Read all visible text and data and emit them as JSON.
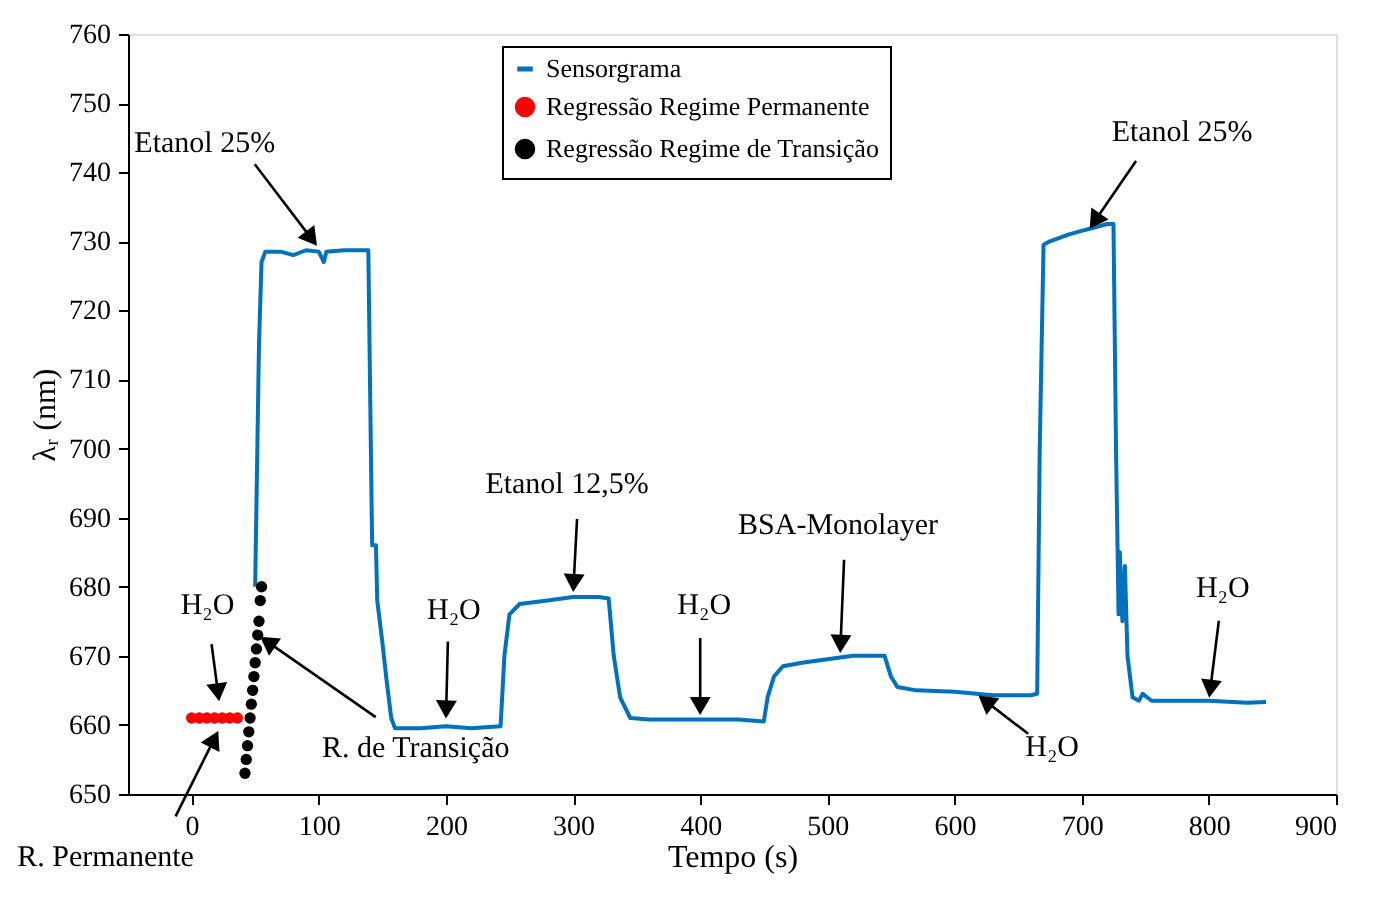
{
  "chart_data": {
    "type": "line",
    "xlabel": "Tempo (s)",
    "ylabel": "λᵣ (nm)",
    "xlim": [
      -50,
      900
    ],
    "xticks": [
      0,
      100,
      200,
      300,
      400,
      500,
      600,
      700,
      800,
      900
    ],
    "ylim": [
      650,
      760
    ],
    "yticks": [
      650,
      660,
      670,
      680,
      690,
      700,
      710,
      720,
      730,
      740,
      750,
      760
    ],
    "grid": false,
    "legend": "top",
    "series": [
      {
        "name": "Sensorgrama",
        "color": "#0072bd",
        "marker": "none",
        "x": [
          50,
          53,
          55,
          58,
          70,
          80,
          90,
          100,
          104,
          106,
          120,
          139,
          141,
          142,
          145,
          146,
          150,
          153,
          157,
          160,
          180,
          200,
          220,
          243,
          246,
          250,
          258,
          280,
          300,
          320,
          328,
          332,
          337,
          345,
          360,
          400,
          430,
          450,
          453,
          458,
          465,
          480,
          500,
          520,
          545,
          550,
          555,
          570,
          600,
          630,
          660,
          665,
          667,
          670,
          675,
          690,
          700,
          710,
          720,
          725,
          727,
          729,
          730,
          732,
          734,
          736,
          740,
          745,
          748,
          755,
          780,
          800,
          830,
          845
        ],
        "values": [
          680,
          715,
          727,
          728.5,
          728.5,
          728,
          728.7,
          728.5,
          727,
          728.5,
          728.7,
          728.7,
          700,
          686,
          686,
          678,
          672,
          667,
          661,
          659.5,
          659.5,
          659.8,
          659.5,
          659.8,
          670,
          676,
          677.5,
          678,
          678.5,
          678.5,
          678.3,
          670,
          664,
          661,
          660.8,
          660.8,
          660.8,
          660.5,
          664,
          667,
          668.5,
          669,
          669.5,
          670,
          670,
          667,
          665.5,
          665,
          664.8,
          664.3,
          664.3,
          664.5,
          700,
          729.5,
          730,
          731,
          731.5,
          732,
          732.5,
          732.5,
          700,
          676,
          685,
          675,
          683,
          670,
          664,
          663.5,
          664.5,
          663.5,
          663.5,
          663.5,
          663.2,
          663.3
        ]
      },
      {
        "name": "Regressão Regime Permanente",
        "type": "scatter",
        "color": "#ff0000",
        "marker": "circle",
        "x": [
          0,
          6,
          12,
          18,
          24,
          30,
          36
        ],
        "values": [
          661,
          661,
          661,
          661,
          661,
          661,
          661
        ]
      },
      {
        "name": "Regressão Regime de Transição",
        "type": "scatter",
        "color": "#000000",
        "marker": "circle",
        "x": [
          42,
          43,
          44,
          45,
          46,
          47,
          48,
          49,
          50,
          51,
          52,
          53,
          54,
          55
        ],
        "values": [
          653,
          655,
          657,
          659,
          661,
          663,
          665,
          667,
          669,
          671,
          673,
          675,
          678,
          680
        ]
      }
    ],
    "annotations": [
      {
        "text": "Etanol 25%",
        "x": 100,
        "y": 729
      },
      {
        "text": "H₂O",
        "x": 22,
        "y": 663
      },
      {
        "text": "R. Permanente",
        "x": 22,
        "y": 659.5
      },
      {
        "text": "R. de Transição",
        "x": 52,
        "y": 673
      },
      {
        "text": "H₂O",
        "x": 200,
        "y": 660.5
      },
      {
        "text": "Etanol 12,5%",
        "x": 300,
        "y": 678.8
      },
      {
        "text": "H₂O",
        "x": 400,
        "y": 661
      },
      {
        "text": "BSA-Monolayer",
        "x": 510,
        "y": 670
      },
      {
        "text": "H₂O",
        "x": 617,
        "y": 664.5
      },
      {
        "text": "Etanol 25%",
        "x": 705,
        "y": 731.5
      },
      {
        "text": "H₂O",
        "x": 800,
        "y": 663.5
      }
    ]
  }
}
